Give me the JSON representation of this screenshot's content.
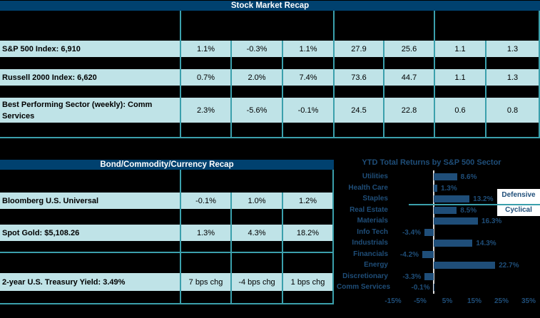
{
  "colors": {
    "background": "#000000",
    "title_bar_navy": "#00416F",
    "data_row_bg": "#BFE3E7",
    "grid_teal": "#3BA0AC",
    "chart_navy": "#1F4E79",
    "axis_line": "#DCDCDC",
    "annotation_box_bg": "#FFFFFF"
  },
  "stock_table": {
    "title": "Stock Market Recap",
    "rows": [
      {
        "label": "S&P 500 Index: 6,910",
        "values": [
          "1.1%",
          "-0.3%",
          "1.1%",
          "27.9",
          "25.6",
          "1.1",
          "1.3"
        ]
      },
      {
        "label": "Russell 2000 Index: 6,620",
        "values": [
          "0.7%",
          "2.0%",
          "7.4%",
          "73.6",
          "44.7",
          "1.1",
          "1.3"
        ]
      },
      {
        "label": "Best Performing Sector (weekly): Comm Services",
        "values": [
          "2.3%",
          "-5.6%",
          "-0.1%",
          "24.5",
          "22.8",
          "0.6",
          "0.8"
        ]
      }
    ]
  },
  "bond_table": {
    "title": "Bond/Commodity/Currency Recap",
    "rows": [
      {
        "label": "Bloomberg U.S. Universal",
        "values": [
          "-0.1%",
          "1.0%",
          "1.2%"
        ]
      },
      {
        "label": "Spot Gold: $5,108.26",
        "values": [
          "1.3%",
          "4.3%",
          "18.2%"
        ]
      },
      {
        "label": "2-year U.S. Treasury Yield: 3.49%",
        "values": [
          "7 bps chg",
          "-4 bps chg",
          "1 bps chg"
        ]
      }
    ]
  },
  "chart_data": {
    "type": "bar",
    "orientation": "horizontal",
    "title": "YTD Total Returns by S&P 500 Sector",
    "categories": [
      "Utilities",
      "Health Care",
      "Staples",
      "Real Estate",
      "Materials",
      "Info Tech",
      "Industrials",
      "Financials",
      "Energy",
      "Discretionary",
      "Comm Services"
    ],
    "values": [
      8.6,
      1.3,
      13.2,
      8.5,
      16.3,
      -3.4,
      14.3,
      -4.2,
      22.7,
      -3.3,
      -0.1
    ],
    "value_labels": [
      "8.6%",
      "1.3%",
      "13.2%",
      "8.5%",
      "16.3%",
      "-3.4%",
      "14.3%",
      "-4.2%",
      "22.7%",
      "-3.3%",
      "-0.1%"
    ],
    "x_tick_labels": [
      "-15%",
      "-5%",
      "5%",
      "15%",
      "25%",
      "35%"
    ],
    "x_tick_values": [
      -15,
      -5,
      5,
      15,
      25,
      35
    ],
    "xlim": [
      -20,
      40
    ],
    "grid": false,
    "legend": false,
    "group_annotations": [
      {
        "label": "Defensive",
        "covers": [
          "Utilities",
          "Health Care",
          "Staples"
        ]
      },
      {
        "label": "Cyclical",
        "covers": [
          "Real Estate",
          "Materials",
          "Info Tech",
          "Industrials",
          "Financials",
          "Energy",
          "Discretionary",
          "Comm Services"
        ]
      }
    ],
    "group_divider_after_category": "Staples"
  }
}
